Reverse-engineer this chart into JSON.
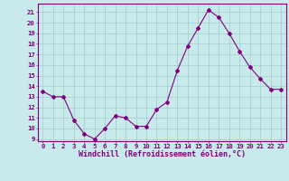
{
  "x": [
    0,
    1,
    2,
    3,
    4,
    5,
    6,
    7,
    8,
    9,
    10,
    11,
    12,
    13,
    14,
    15,
    16,
    17,
    18,
    19,
    20,
    21,
    22,
    23
  ],
  "y": [
    13.5,
    13.0,
    13.0,
    10.8,
    9.5,
    9.0,
    10.0,
    11.2,
    11.0,
    10.2,
    10.2,
    11.8,
    12.5,
    15.5,
    17.8,
    19.5,
    21.2,
    20.5,
    19.0,
    17.3,
    15.8,
    14.7,
    13.7,
    13.7
  ],
  "line_color": "#800080",
  "marker": "D",
  "marker_size": 2.0,
  "bg_color": "#c8eaea",
  "grid_color": "#a8d0d0",
  "xlabel": "Windchill (Refroidissement éolien,°C)",
  "ylabel_ticks": [
    9,
    10,
    11,
    12,
    13,
    14,
    15,
    16,
    17,
    18,
    19,
    20,
    21
  ],
  "xlim": [
    -0.5,
    23.5
  ],
  "ylim": [
    8.8,
    21.8
  ],
  "tick_color": "#800080",
  "label_color": "#800080",
  "tick_fontsize": 5.2,
  "xlabel_fontsize": 6.0
}
